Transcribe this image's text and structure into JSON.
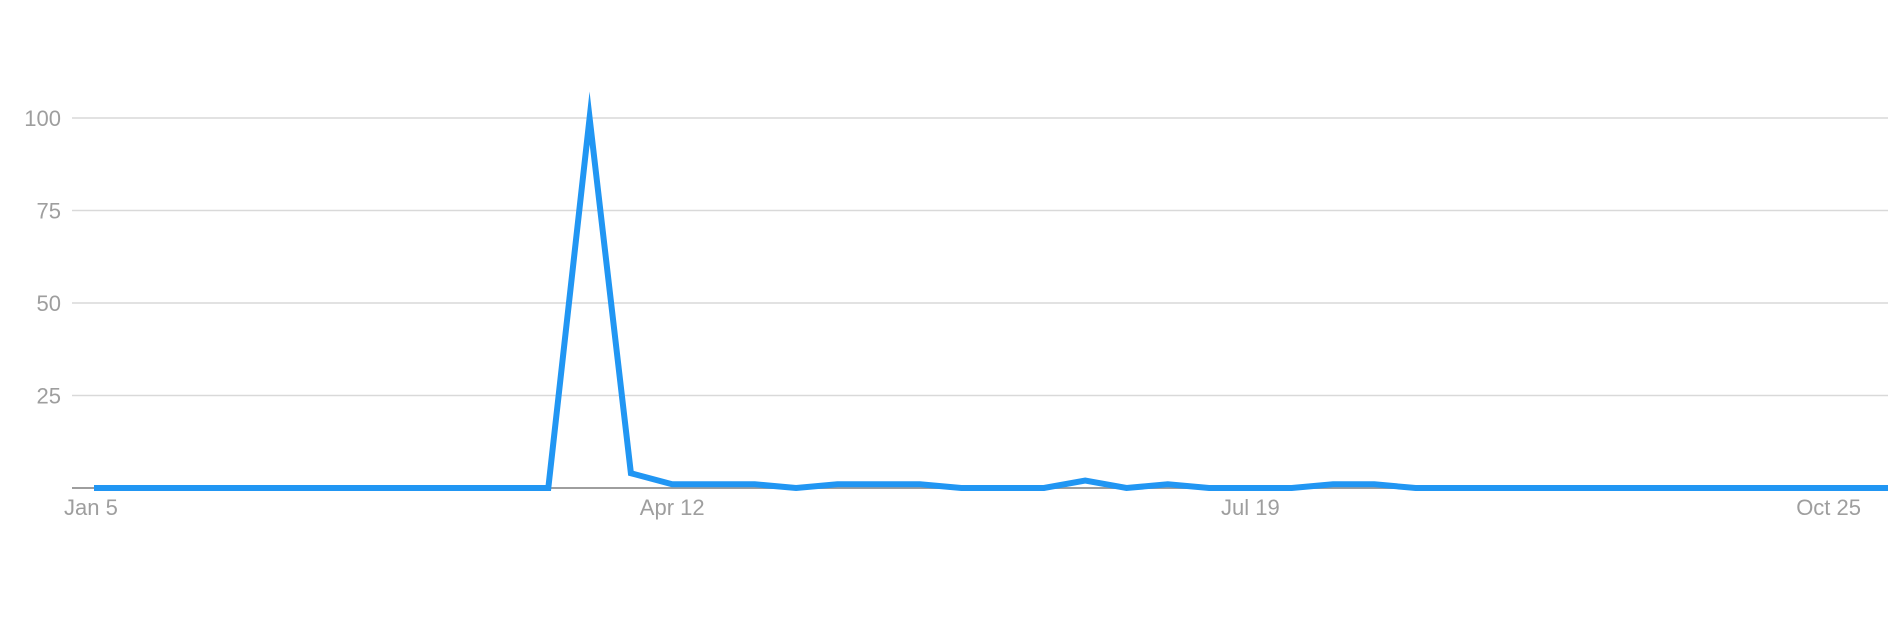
{
  "chart_data": {
    "type": "line",
    "title": "",
    "xlabel": "",
    "ylabel": "",
    "ylim": [
      0,
      100
    ],
    "yticks": [
      25,
      50,
      75,
      100
    ],
    "xtick_labels": [
      "Jan 5",
      "Apr 12",
      "Jul 19",
      "Oct 25"
    ],
    "x_axis_start": "Jan 5",
    "x_interval_weeks": 1,
    "grid": true,
    "legend": "none",
    "colors": {
      "series": "#2196f3",
      "grid": "#d9d9d9",
      "baseline": "#9e9e9e",
      "tick_text": "#9e9e9e"
    },
    "series": [
      {
        "values": [
          0,
          0,
          0,
          0,
          0,
          0,
          0,
          0,
          0,
          0,
          0,
          0,
          100,
          4,
          1,
          1,
          1,
          0,
          1,
          1,
          1,
          0,
          0,
          0,
          2,
          0,
          1,
          0,
          0,
          0,
          1,
          1,
          0,
          0,
          0,
          0,
          0,
          0,
          0,
          0,
          0,
          0,
          0,
          0,
          0,
          0,
          0
        ]
      }
    ]
  }
}
